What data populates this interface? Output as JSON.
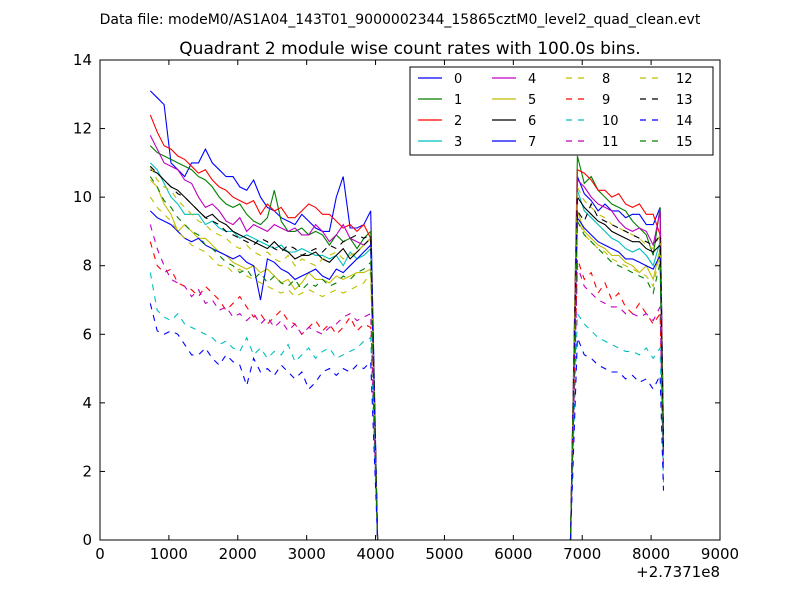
{
  "page_title": "Data file: modeM0/AS1A04_143T01_9000002344_15865cztM0_level2_quad_clean.evt",
  "chart_data": {
    "type": "line",
    "title": "Quadrant 2 module wise count rates with 100.0s bins.",
    "xlabel": "",
    "ylabel": "",
    "x_offset_label": "+2.7371e8",
    "xlim": [
      0,
      9000
    ],
    "ylim": [
      0,
      14
    ],
    "x_ticks": [
      0,
      1000,
      2000,
      3000,
      4000,
      5000,
      6000,
      7000,
      8000,
      9000
    ],
    "y_ticks": [
      0,
      2,
      4,
      6,
      8,
      10,
      12,
      14
    ],
    "grid": false,
    "legend_position": "top-right",
    "legend_columns": 4,
    "segments": [
      {
        "x_start": 730,
        "x_end": 3930,
        "x_step": 100
      },
      {
        "x_start": 6930,
        "x_end": 8130,
        "x_step": 100
      }
    ],
    "gap_value": 0,
    "series": [
      {
        "name": "0",
        "color": "#0000ff",
        "dash": "solid",
        "s1": [
          13.1,
          12.9,
          12.7,
          11.0,
          10.8,
          10.6,
          11.0,
          11.0,
          11.4,
          11.0,
          10.8,
          10.6,
          10.6,
          10.3,
          10.2,
          10.5,
          10.0,
          9.7,
          9.6,
          9.4,
          9.3,
          9.2,
          9.5,
          9.3,
          9.1,
          9.0,
          9.0,
          10.0,
          10.6,
          9.1,
          9.1,
          9.2,
          9.6
        ],
        "s2": [
          10.6,
          10.1,
          9.9,
          9.6,
          9.8,
          9.6,
          9.6,
          9.4,
          9.5,
          9.5,
          9.2,
          9.2,
          9.7
        ]
      },
      {
        "name": "1",
        "color": "#008000",
        "dash": "solid",
        "s1": [
          11.5,
          11.3,
          11.2,
          11.1,
          11.0,
          10.9,
          10.8,
          10.6,
          10.5,
          10.3,
          10.0,
          9.8,
          9.7,
          9.8,
          9.5,
          9.3,
          9.2,
          9.4,
          10.2,
          9.3,
          9.0,
          9.0,
          9.1,
          8.9,
          9.0,
          8.9,
          8.6,
          8.9,
          8.7,
          8.8,
          8.5,
          8.8,
          9.0
        ],
        "s2": [
          11.2,
          10.4,
          10.6,
          10.2,
          10.0,
          9.8,
          9.7,
          9.6,
          9.3,
          9.1,
          8.9,
          8.3,
          9.7
        ]
      },
      {
        "name": "2",
        "color": "#ff0000",
        "dash": "solid",
        "s1": [
          12.4,
          11.9,
          11.5,
          11.4,
          11.2,
          11.1,
          10.9,
          10.7,
          10.8,
          10.5,
          10.3,
          10.2,
          10.0,
          9.9,
          9.8,
          9.9,
          9.5,
          9.8,
          9.6,
          9.7,
          9.4,
          9.4,
          9.6,
          9.8,
          9.7,
          9.5,
          9.5,
          9.3,
          9.1,
          9.2,
          9.0,
          9.2,
          8.8
        ],
        "s2": [
          10.8,
          10.7,
          10.5,
          10.2,
          10.2,
          10.0,
          10.1,
          9.8,
          9.7,
          9.8,
          9.5,
          9.5,
          8.9
        ]
      },
      {
        "name": "3",
        "color": "#00bfbf",
        "dash": "solid",
        "s1": [
          11.0,
          10.8,
          10.4,
          10.0,
          9.8,
          9.5,
          9.5,
          9.5,
          9.2,
          9.3,
          9.1,
          9.0,
          9.0,
          8.8,
          8.9,
          8.8,
          8.7,
          8.6,
          8.5,
          8.6,
          8.4,
          8.4,
          8.5,
          8.4,
          8.3,
          8.3,
          8.2,
          8.3,
          8.0,
          8.4,
          8.2,
          8.3,
          8.5
        ],
        "s2": [
          10.2,
          9.6,
          9.4,
          9.2,
          9.0,
          8.8,
          8.7,
          8.5,
          8.4,
          8.5,
          8.3,
          8.0,
          8.7
        ]
      },
      {
        "name": "4",
        "color": "#bf00bf",
        "dash": "solid",
        "s1": [
          11.8,
          11.4,
          11.0,
          10.9,
          10.8,
          10.5,
          10.4,
          10.0,
          9.7,
          9.8,
          9.6,
          9.3,
          9.2,
          9.4,
          9.0,
          9.2,
          9.1,
          9.0,
          9.2,
          9.1,
          9.0,
          9.1,
          8.9,
          8.9,
          9.2,
          9.0,
          8.7,
          8.9,
          9.2,
          8.8,
          8.7,
          8.6,
          8.8
        ],
        "s2": [
          10.5,
          10.3,
          10.0,
          9.8,
          9.7,
          9.6,
          9.3,
          9.1,
          9.0,
          9.1,
          9.0,
          8.6,
          9.6
        ]
      },
      {
        "name": "5",
        "color": "#bfbf00",
        "dash": "solid",
        "s1": [
          10.5,
          10.3,
          9.8,
          9.5,
          9.0,
          9.2,
          9.0,
          8.8,
          8.8,
          8.6,
          8.4,
          8.3,
          8.1,
          8.0,
          7.9,
          8.0,
          7.8,
          7.9,
          7.7,
          7.5,
          7.6,
          7.3,
          7.5,
          7.8,
          7.6,
          7.6,
          7.5,
          7.7,
          7.6,
          7.7,
          7.8,
          7.8,
          7.9
        ],
        "s2": [
          9.6,
          9.0,
          8.8,
          8.6,
          8.5,
          8.3,
          8.3,
          8.1,
          8.0,
          7.8,
          8.0,
          7.6,
          8.5
        ]
      },
      {
        "name": "6",
        "color": "#000000",
        "dash": "solid",
        "s1": [
          10.8,
          10.7,
          10.5,
          10.3,
          10.2,
          10.0,
          9.8,
          9.6,
          9.4,
          9.5,
          9.3,
          9.2,
          9.0,
          8.9,
          8.8,
          8.7,
          8.6,
          8.5,
          8.7,
          8.5,
          8.4,
          8.2,
          8.3,
          8.3,
          8.4,
          8.2,
          8.1,
          8.3,
          8.5,
          8.2,
          8.4,
          8.6,
          8.8
        ],
        "s2": [
          10.0,
          9.7,
          9.5,
          9.3,
          9.2,
          9.0,
          8.9,
          8.8,
          8.7,
          8.7,
          8.5,
          8.4,
          8.6
        ]
      },
      {
        "name": "7",
        "color": "#0000ff",
        "dash": "solid",
        "s1": [
          9.6,
          9.4,
          9.3,
          9.2,
          9.0,
          8.8,
          8.7,
          8.8,
          8.6,
          8.5,
          8.4,
          8.3,
          8.2,
          8.3,
          8.1,
          8.0,
          7.0,
          8.2,
          8.1,
          7.9,
          7.8,
          7.6,
          7.7,
          7.8,
          7.9,
          7.7,
          7.6,
          7.9,
          7.8,
          8.0,
          8.2,
          8.4,
          8.6
        ],
        "s2": [
          9.4,
          9.1,
          8.9,
          8.7,
          8.6,
          8.5,
          8.4,
          8.2,
          8.2,
          8.1,
          8.0,
          7.9,
          8.3
        ]
      },
      {
        "name": "8",
        "color": "#bfbf00",
        "dash": "dashed",
        "s1": [
          10.0,
          9.7,
          9.5,
          9.3,
          9.0,
          8.8,
          8.6,
          8.5,
          8.4,
          8.2,
          8.0,
          8.0,
          7.8,
          7.9,
          7.7,
          7.6,
          7.5,
          7.4,
          7.3,
          7.2,
          7.3,
          7.1,
          7.2,
          7.3,
          7.2,
          7.1,
          7.2,
          7.3,
          7.2,
          7.3,
          7.4,
          7.5,
          7.8
        ],
        "s2": [
          9.4,
          8.9,
          8.7,
          8.5,
          8.4,
          8.2,
          8.1,
          8.0,
          7.9,
          7.8,
          7.7,
          7.4,
          8.4
        ]
      },
      {
        "name": "9",
        "color": "#ff0000",
        "dash": "dashed",
        "s1": [
          8.7,
          8.0,
          7.8,
          7.9,
          7.5,
          7.4,
          7.3,
          7.1,
          7.4,
          7.2,
          7.0,
          6.7,
          6.9,
          7.1,
          6.8,
          6.5,
          6.6,
          6.3,
          6.5,
          6.7,
          6.4,
          6.3,
          6.0,
          6.2,
          6.4,
          6.1,
          6.3,
          6.0,
          6.2,
          6.5,
          6.1,
          6.3,
          6.2
        ],
        "s2": [
          8.2,
          7.6,
          7.8,
          7.2,
          7.5,
          7.0,
          7.2,
          6.8,
          6.6,
          6.9,
          6.6,
          6.3,
          6.6
        ]
      },
      {
        "name": "10",
        "color": "#00bfbf",
        "dash": "dashed",
        "s1": [
          7.8,
          6.7,
          6.5,
          6.4,
          6.6,
          6.3,
          6.2,
          6.1,
          6.0,
          5.9,
          5.7,
          5.8,
          5.6,
          5.5,
          5.9,
          5.4,
          5.6,
          5.3,
          5.5,
          5.4,
          5.7,
          5.2,
          5.4,
          5.6,
          5.3,
          5.5,
          5.6,
          5.3,
          5.4,
          5.5,
          5.6,
          5.8,
          5.9
        ],
        "s2": [
          6.6,
          6.3,
          6.1,
          5.9,
          5.8,
          5.7,
          5.6,
          5.5,
          5.5,
          5.4,
          5.6,
          5.3,
          5.6
        ]
      },
      {
        "name": "11",
        "color": "#bf00bf",
        "dash": "dashed",
        "s1": [
          9.2,
          8.5,
          8.0,
          7.6,
          7.5,
          7.4,
          7.1,
          7.3,
          6.9,
          7.0,
          6.7,
          6.8,
          6.5,
          6.6,
          6.4,
          6.6,
          6.3,
          6.5,
          6.2,
          6.4,
          6.1,
          6.3,
          6.0,
          6.2,
          6.1,
          6.0,
          6.2,
          6.3,
          6.5,
          6.6,
          6.4,
          6.5,
          6.6
        ],
        "s2": [
          8.0,
          7.4,
          7.2,
          7.0,
          6.9,
          6.8,
          6.8,
          6.6,
          6.6,
          6.5,
          6.6,
          6.4,
          6.8
        ]
      },
      {
        "name": "12",
        "color": "#bfbf00",
        "dash": "dashed",
        "s1": [
          10.9,
          10.5,
          10.3,
          10.2,
          9.9,
          9.7,
          9.5,
          9.3,
          9.2,
          9.0,
          8.9,
          8.8,
          8.6,
          8.5,
          8.6,
          8.4,
          8.3,
          8.4,
          8.2,
          8.1,
          8.3,
          8.0,
          8.2,
          8.1,
          8.0,
          8.2,
          8.3,
          8.4,
          8.2,
          8.3,
          8.4,
          8.6,
          8.8
        ],
        "s2": [
          10.3,
          9.9,
          9.7,
          9.5,
          9.4,
          9.2,
          9.1,
          9.0,
          8.9,
          8.8,
          8.6,
          8.5,
          8.9
        ]
      },
      {
        "name": "13",
        "color": "#000000",
        "dash": "dashed",
        "s1": [
          10.9,
          10.7,
          10.5,
          10.3,
          10.1,
          10.0,
          9.8,
          9.6,
          9.4,
          9.3,
          9.2,
          9.0,
          8.9,
          8.8,
          8.7,
          8.6,
          8.8,
          8.7,
          8.5,
          8.4,
          8.6,
          8.5,
          8.3,
          8.4,
          8.5,
          8.4,
          8.6,
          8.5,
          8.7,
          8.8,
          8.9,
          8.8,
          8.9
        ],
        "s2": [
          9.6,
          9.3,
          9.8,
          9.4,
          9.3,
          9.2,
          9.1,
          9.0,
          8.9,
          8.8,
          8.7,
          8.6,
          8.9
        ]
      },
      {
        "name": "14",
        "color": "#0000ff",
        "dash": "dashed",
        "s1": [
          6.9,
          6.1,
          6.0,
          6.1,
          6.0,
          5.7,
          5.4,
          5.4,
          5.6,
          5.3,
          5.1,
          5.4,
          5.2,
          5.1,
          4.5,
          5.3,
          4.9,
          5.0,
          4.8,
          5.1,
          4.9,
          4.7,
          4.9,
          4.4,
          4.6,
          4.9,
          5.0,
          4.8,
          5.0,
          4.9,
          5.1,
          5.0,
          5.2
        ],
        "s2": [
          5.9,
          5.4,
          5.3,
          5.1,
          5.0,
          4.9,
          4.9,
          4.7,
          4.8,
          4.6,
          4.7,
          4.4,
          4.8
        ]
      },
      {
        "name": "15",
        "color": "#008000",
        "dash": "dashed",
        "s1": [
          10.6,
          10.3,
          9.9,
          9.7,
          9.4,
          9.2,
          9.0,
          8.9,
          8.6,
          8.5,
          8.3,
          8.1,
          8.0,
          7.8,
          7.9,
          7.6,
          7.8,
          7.5,
          7.7,
          7.5,
          7.4,
          7.6,
          7.3,
          7.5,
          7.4,
          7.6,
          7.4,
          7.5,
          7.7,
          7.6,
          7.8,
          7.9,
          8.1
        ],
        "s2": [
          9.3,
          8.9,
          8.7,
          8.5,
          8.3,
          8.1,
          8.0,
          7.9,
          7.8,
          7.7,
          7.6,
          7.2,
          8.1
        ]
      }
    ]
  }
}
